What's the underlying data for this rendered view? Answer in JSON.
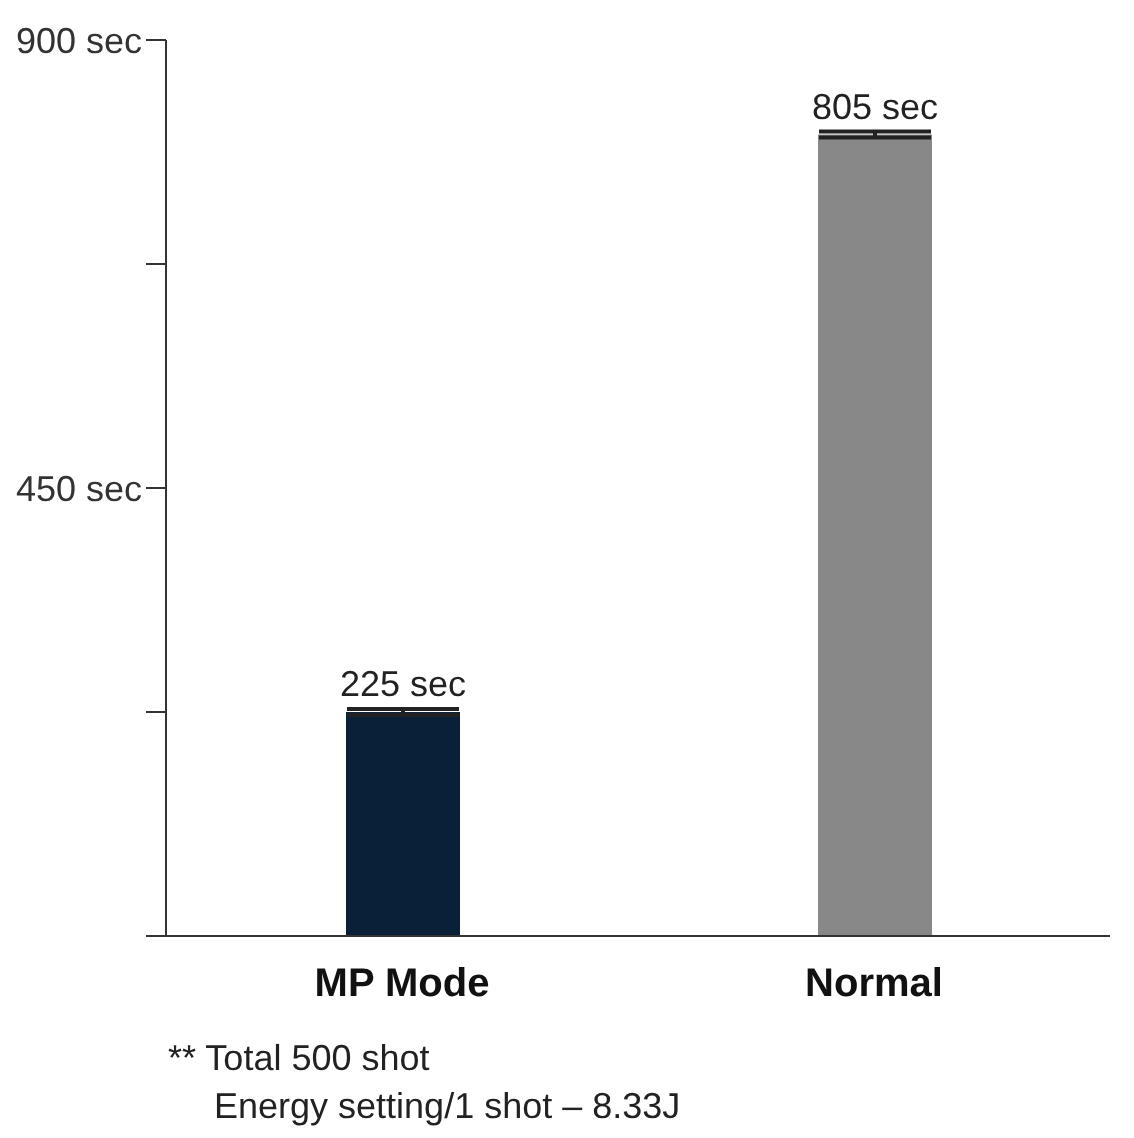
{
  "chart_data": {
    "type": "bar",
    "categories": [
      "MP Mode",
      "Normal"
    ],
    "values": [
      225,
      805
    ],
    "colors": [
      "#0a2039",
      "#888888"
    ],
    "errors": [
      3,
      3
    ],
    "value_labels": [
      "225 sec",
      "805 sec"
    ],
    "ylim": [
      0,
      900
    ],
    "yticks": [
      {
        "value": 0,
        "label": null
      },
      {
        "value": 225,
        "label": null
      },
      {
        "value": 450,
        "label": "450 sec"
      },
      {
        "value": 675,
        "label": null
      },
      {
        "value": 900,
        "label": "900 sec"
      }
    ],
    "grid": false,
    "annotations": [
      "** Total 500 shot",
      "Energy setting/1 shot – 8.33J"
    ]
  }
}
